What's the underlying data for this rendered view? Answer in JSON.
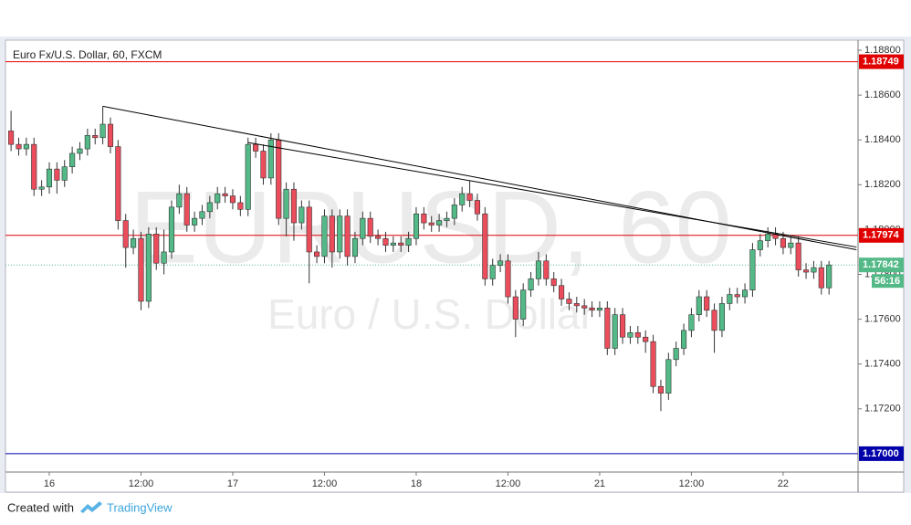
{
  "chart_data": {
    "type": "candlestick",
    "title": "Euro Fx/U.S. Dollar, 60, FXCM",
    "watermark": "EURUSD, 60",
    "watermark_sub": "Euro / U.S. Dollar",
    "up_color": "#53b987",
    "down_color": "#eb4d5c",
    "wick_color": "#333333",
    "candles": {
      "open": [
        1.1844,
        1.1838,
        1.1836,
        1.1838,
        1.1818,
        1.1819,
        1.1827,
        1.1822,
        1.1828,
        1.1834,
        1.1836,
        1.1842,
        1.1841,
        1.1847,
        1.1837,
        1.1804,
        1.1792,
        1.1796,
        1.1768,
        1.1798,
        1.1785,
        1.179,
        1.181,
        1.1816,
        1.1802,
        1.1805,
        1.1808,
        1.1812,
        1.1816,
        1.1815,
        1.1812,
        1.1809,
        1.1838,
        1.1835,
        1.1823,
        1.184,
        1.1805,
        1.1818,
        1.1803,
        1.181,
        1.179,
        1.1788,
        1.1806,
        1.179,
        1.1806,
        1.1788,
        1.1796,
        1.1805,
        1.1797,
        1.1796,
        1.1793,
        1.1794,
        1.1793,
        1.1796,
        1.1807,
        1.1803,
        1.1802,
        1.1804,
        1.1805,
        1.1811,
        1.1816,
        1.1813,
        1.1807,
        1.1778,
        1.1784,
        1.1786,
        1.177,
        1.176,
        1.1773,
        1.1778,
        1.1786,
        1.1778,
        1.1775,
        1.1769,
        1.1767,
        1.1766,
        1.1765,
        1.1764,
        1.1765,
        1.1747,
        1.1762,
        1.1752,
        1.1754,
        1.1752,
        1.175,
        1.173,
        1.1727,
        1.1742,
        1.1747,
        1.1755,
        1.1762,
        1.177,
        1.1764,
        1.1755,
        1.1767,
        1.1771,
        1.177,
        1.1773,
        1.1791,
        1.1795,
        1.1798,
        1.1796,
        1.1792,
        1.1794,
        1.1782,
        1.1781,
        1.1783,
        1.1774
      ],
      "high": [
        1.1853,
        1.1841,
        1.1841,
        1.1841,
        1.1822,
        1.183,
        1.183,
        1.1831,
        1.1837,
        1.1839,
        1.1845,
        1.1845,
        1.1855,
        1.185,
        1.184,
        1.1807,
        1.18,
        1.1799,
        1.1801,
        1.1801,
        1.18,
        1.1813,
        1.182,
        1.1819,
        1.1808,
        1.1811,
        1.1815,
        1.1819,
        1.1819,
        1.1818,
        1.1815,
        1.1841,
        1.1841,
        1.1838,
        1.1843,
        1.1843,
        1.1821,
        1.1821,
        1.1813,
        1.1813,
        1.1793,
        1.1809,
        1.1809,
        1.1809,
        1.1809,
        1.1799,
        1.1808,
        1.1808,
        1.18,
        1.1799,
        1.1797,
        1.1797,
        1.1799,
        1.181,
        1.181,
        1.1806,
        1.1807,
        1.1808,
        1.1814,
        1.1819,
        1.1822,
        1.1816,
        1.181,
        1.1787,
        1.1789,
        1.1789,
        1.1773,
        1.1776,
        1.1781,
        1.179,
        1.1789,
        1.1781,
        1.1778,
        1.1772,
        1.177,
        1.1769,
        1.1768,
        1.1768,
        1.1768,
        1.1765,
        1.1765,
        1.1757,
        1.1757,
        1.1755,
        1.1753,
        1.1733,
        1.1745,
        1.175,
        1.1758,
        1.1765,
        1.1773,
        1.1773,
        1.1767,
        1.177,
        1.1774,
        1.1774,
        1.1776,
        1.1794,
        1.1798,
        1.1801,
        1.1801,
        1.1799,
        1.1797,
        1.1797,
        1.1785,
        1.1786,
        1.1786,
        1.1786
      ],
      "low": [
        1.1835,
        1.1833,
        1.1833,
        1.1815,
        1.1815,
        1.1816,
        1.1816,
        1.1819,
        1.1825,
        1.1831,
        1.1833,
        1.1838,
        1.1838,
        1.1834,
        1.18,
        1.1783,
        1.1789,
        1.1764,
        1.1765,
        1.1782,
        1.178,
        1.1787,
        1.1807,
        1.1799,
        1.1799,
        1.1802,
        1.1805,
        1.1809,
        1.1812,
        1.1809,
        1.1806,
        1.1806,
        1.1832,
        1.182,
        1.182,
        1.1802,
        1.1797,
        1.1795,
        1.18,
        1.1776,
        1.1785,
        1.1785,
        1.1783,
        1.1787,
        1.1784,
        1.1785,
        1.1793,
        1.1794,
        1.1793,
        1.179,
        1.179,
        1.179,
        1.179,
        1.1793,
        1.18,
        1.1799,
        1.1799,
        1.1801,
        1.1802,
        1.1808,
        1.181,
        1.1804,
        1.1775,
        1.1775,
        1.1781,
        1.1767,
        1.1752,
        1.1757,
        1.177,
        1.1775,
        1.1775,
        1.1772,
        1.1766,
        1.1764,
        1.1763,
        1.1762,
        1.1761,
        1.1761,
        1.1744,
        1.1744,
        1.1749,
        1.1749,
        1.1749,
        1.1745,
        1.1727,
        1.1719,
        1.1724,
        1.1739,
        1.1744,
        1.1752,
        1.1759,
        1.1761,
        1.1745,
        1.1752,
        1.1764,
        1.1767,
        1.1767,
        1.177,
        1.1788,
        1.1792,
        1.1793,
        1.1789,
        1.1789,
        1.1779,
        1.1778,
        1.1778,
        1.1771,
        1.1771
      ],
      "close": [
        1.1838,
        1.1836,
        1.1838,
        1.1818,
        1.1819,
        1.1827,
        1.1822,
        1.1828,
        1.1834,
        1.1836,
        1.1842,
        1.1841,
        1.1847,
        1.1837,
        1.1804,
        1.1792,
        1.1796,
        1.1768,
        1.1798,
        1.1785,
        1.179,
        1.181,
        1.1816,
        1.1802,
        1.1805,
        1.1808,
        1.1812,
        1.1816,
        1.1815,
        1.1812,
        1.1809,
        1.1838,
        1.1835,
        1.1823,
        1.184,
        1.1805,
        1.1818,
        1.1803,
        1.181,
        1.179,
        1.1788,
        1.1806,
        1.179,
        1.1806,
        1.1788,
        1.1796,
        1.1805,
        1.1797,
        1.1796,
        1.1793,
        1.1794,
        1.1793,
        1.1796,
        1.1807,
        1.1803,
        1.1802,
        1.1804,
        1.1805,
        1.1811,
        1.1816,
        1.1813,
        1.1807,
        1.1778,
        1.1784,
        1.1786,
        1.177,
        1.176,
        1.1773,
        1.1778,
        1.1786,
        1.1778,
        1.1775,
        1.1769,
        1.1767,
        1.1766,
        1.1765,
        1.1764,
        1.1765,
        1.1747,
        1.1762,
        1.1752,
        1.1754,
        1.1752,
        1.175,
        1.173,
        1.1727,
        1.1742,
        1.1747,
        1.1755,
        1.1762,
        1.177,
        1.1764,
        1.1755,
        1.1767,
        1.1771,
        1.177,
        1.1773,
        1.1791,
        1.1795,
        1.1798,
        1.1796,
        1.1792,
        1.1794,
        1.1782,
        1.1781,
        1.1783,
        1.1774,
        1.17842
      ]
    },
    "countdown": "56:16",
    "hlines": [
      {
        "value": 1.18749,
        "color": "#e00000"
      },
      {
        "value": 1.17974,
        "color": "#e00000"
      },
      {
        "value": 1.17,
        "label": "1.17000",
        "color": "#0000aa"
      }
    ],
    "trendlines": [
      {
        "x": [
          12,
          110.6
        ],
        "y": [
          1.1855,
          1.1791
        ]
      },
      {
        "x": [
          31,
          110.6
        ],
        "y": [
          1.18388,
          1.17922
        ]
      }
    ],
    "xlim": [
      -0.73,
      110.8
    ],
    "ylim": [
      1.16918,
      1.18845
    ],
    "xticks": [
      {
        "value": 5,
        "label": "16"
      },
      {
        "value": 17,
        "label": "12:00"
      },
      {
        "value": 29,
        "label": "17"
      },
      {
        "value": 41,
        "label": "12:00"
      },
      {
        "value": 53,
        "label": "18"
      },
      {
        "value": 65,
        "label": "12:00"
      },
      {
        "value": 77,
        "label": "21"
      },
      {
        "value": 89,
        "label": "12:00"
      },
      {
        "value": 101,
        "label": "22"
      }
    ],
    "yticks": [
      {
        "value": 1.188,
        "label": "1.18800"
      },
      {
        "value": 1.186,
        "label": "1.18600"
      },
      {
        "value": 1.184,
        "label": "1.18400"
      },
      {
        "value": 1.182,
        "label": "1.18200"
      },
      {
        "value": 1.18,
        "label": "1.18000"
      },
      {
        "value": 1.178,
        "label": "1.17800"
      },
      {
        "value": 1.176,
        "label": "1.17600"
      },
      {
        "value": 1.174,
        "label": "1.17400"
      },
      {
        "value": 1.172,
        "label": "1.17200"
      }
    ]
  },
  "footer": {
    "prefix": "Created with",
    "brand": "TradingView"
  }
}
